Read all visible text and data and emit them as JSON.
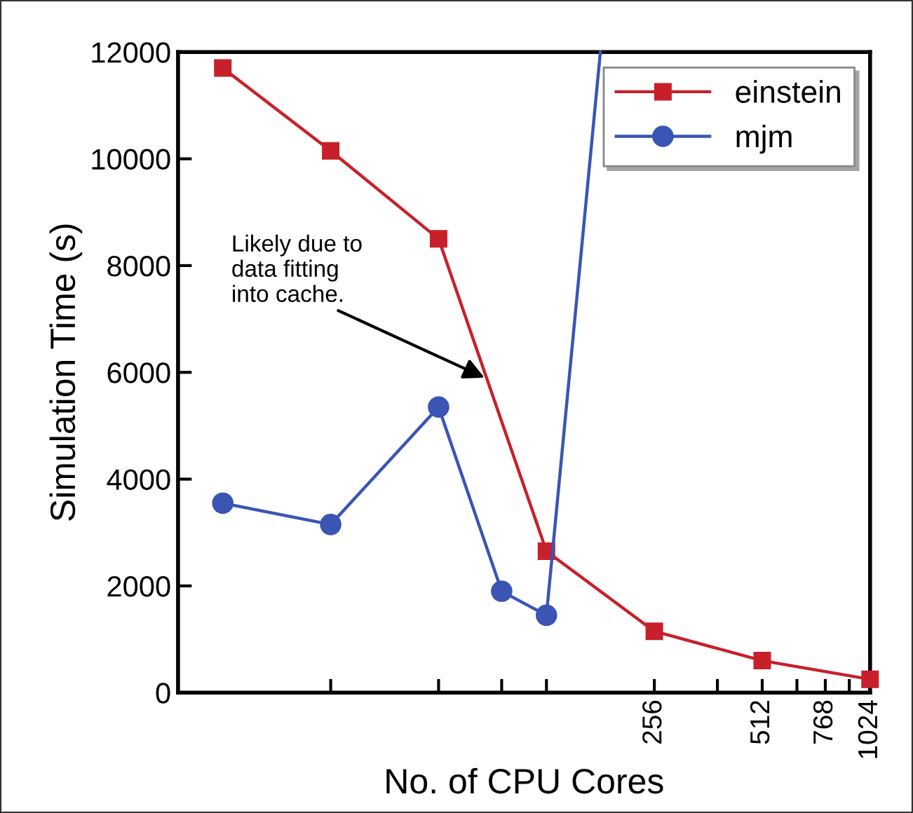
{
  "chart_data": {
    "type": "line",
    "xlabel": "No. of CPU Cores",
    "ylabel": "Simulation Time (s)",
    "log": "x",
    "xlim": [
      12,
      1024
    ],
    "ylim": [
      0,
      12000
    ],
    "xticks": [
      {
        "value": 32,
        "label": null
      },
      {
        "value": 64,
        "label": null
      },
      {
        "value": 96,
        "label": null
      },
      {
        "value": 128,
        "label": null
      },
      256,
      {
        "value": 384,
        "label": null
      },
      512,
      {
        "value": 640,
        "label": null
      },
      768,
      {
        "value": 896,
        "label": null
      },
      1024
    ],
    "yticks": [
      0,
      2000,
      4000,
      6000,
      8000,
      10000,
      12000
    ],
    "grid": false,
    "legend": "top right",
    "series": [
      {
        "name": "einstein",
        "color": "#c8202a",
        "marker": "square",
        "x": [
          16,
          32,
          64,
          128,
          256,
          512,
          1024
        ],
        "values": [
          11700,
          10150,
          8500,
          2650,
          1150,
          600,
          250
        ]
      },
      {
        "name": "mjm",
        "color": "#3a55b4",
        "marker": "circle",
        "x": [
          16,
          32,
          64,
          96,
          128
        ],
        "values": [
          3550,
          3150,
          5350,
          1900,
          1450
        ]
      },
      {
        "color": "#3a55b4",
        "marker": "none",
        "x": [
          128,
          181
        ],
        "values": [
          1450,
          12000
        ]
      }
    ],
    "annotations": [
      {
        "text": "Likely due to\ndata fitting\ninto cache.",
        "x": 86,
        "y": 5900
      }
    ]
  }
}
